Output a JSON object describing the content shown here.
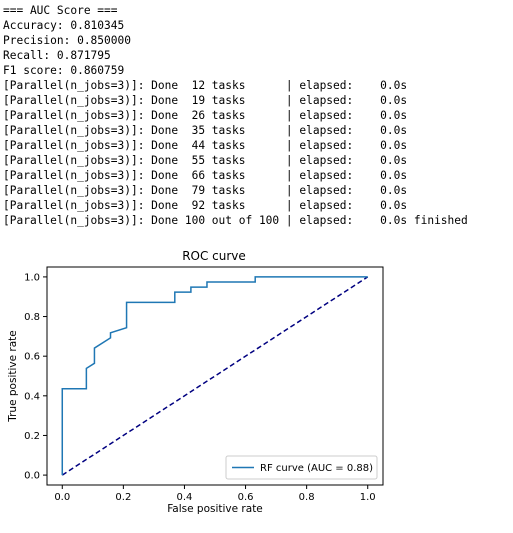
{
  "console": {
    "lines": [
      "=== AUC Score ===",
      "Accuracy: 0.810345",
      "Precision: 0.850000",
      "Recall: 0.871795",
      "F1 score: 0.860759",
      "[Parallel(n_jobs=3)]: Done  12 tasks      | elapsed:    0.0s",
      "[Parallel(n_jobs=3)]: Done  19 tasks      | elapsed:    0.0s",
      "[Parallel(n_jobs=3)]: Done  26 tasks      | elapsed:    0.0s",
      "[Parallel(n_jobs=3)]: Done  35 tasks      | elapsed:    0.0s",
      "[Parallel(n_jobs=3)]: Done  44 tasks      | elapsed:    0.0s",
      "[Parallel(n_jobs=3)]: Done  55 tasks      | elapsed:    0.0s",
      "[Parallel(n_jobs=3)]: Done  66 tasks      | elapsed:    0.0s",
      "[Parallel(n_jobs=3)]: Done  79 tasks      | elapsed:    0.0s",
      "[Parallel(n_jobs=3)]: Done  92 tasks      | elapsed:    0.0s",
      "[Parallel(n_jobs=3)]: Done 100 out of 100 | elapsed:    0.0s finished"
    ]
  },
  "chart_data": {
    "type": "line",
    "title": "ROC curve",
    "xlabel": "False positive rate",
    "ylabel": "True positive rate",
    "xlim": [
      -0.05,
      1.05
    ],
    "ylim": [
      -0.05,
      1.05
    ],
    "x_ticks": [
      "0.0",
      "0.2",
      "0.4",
      "0.6",
      "0.8",
      "1.0"
    ],
    "y_ticks": [
      "0.0",
      "0.2",
      "0.4",
      "0.6",
      "0.8",
      "1.0"
    ],
    "grid": false,
    "legend_position": "lower-right",
    "series": [
      {
        "name": "RF curve (AUC = 0.88)",
        "color": "#1f77b4",
        "x": [
          0,
          0,
          0.0789,
          0.0789,
          0.0789,
          0.1053,
          0.1053,
          0.1053,
          0.1579,
          0.1579,
          0.2105,
          0.2105,
          0.3684,
          0.3684,
          0.4211,
          0.4211,
          0.4737,
          0.4737,
          0.6316,
          0.6316,
          1.0
        ],
        "y": [
          0,
          0.4359,
          0.4359,
          0.5385,
          0.5385,
          0.5641,
          0.641,
          0.641,
          0.6923,
          0.7179,
          0.7436,
          0.8718,
          0.8718,
          0.9231,
          0.9231,
          0.9487,
          0.9487,
          0.9744,
          0.9744,
          1.0,
          1.0
        ]
      }
    ],
    "reference_line": {
      "x": [
        0,
        1
      ],
      "y": [
        0,
        1
      ],
      "color": "#000080",
      "style": "dashed"
    }
  }
}
